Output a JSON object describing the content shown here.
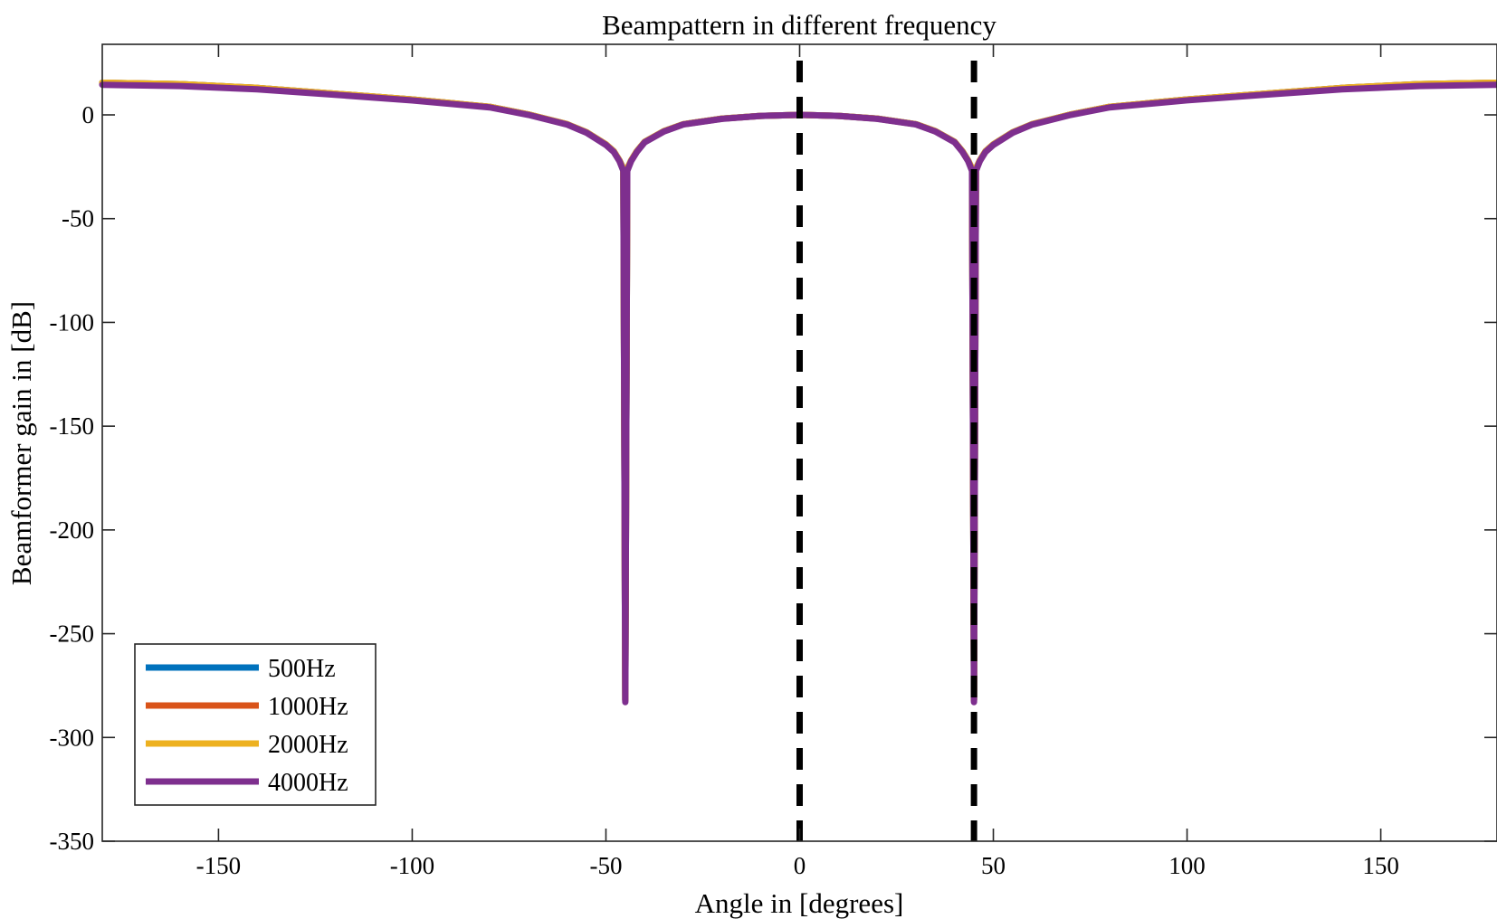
{
  "chart_data": {
    "type": "line",
    "title": "Beampattern in different frequency",
    "xlabel": "Angle in [degrees]",
    "ylabel": "Beamformer gain in [dB]",
    "xlim": [
      -180,
      180
    ],
    "ylim": [
      -350,
      34
    ],
    "xticks": [
      -150,
      -100,
      -50,
      0,
      50,
      100,
      150
    ],
    "yticks": [
      0,
      -50,
      -100,
      -150,
      -200,
      -250,
      -300,
      -350
    ],
    "grid": false,
    "legend_position": "bottom-left",
    "series": [
      {
        "name": "500Hz",
        "color": "#0072BD",
        "points": [
          [
            -180,
            15.5
          ],
          [
            -160,
            14.8
          ],
          [
            -140,
            13.0
          ],
          [
            -120,
            10.2
          ],
          [
            -100,
            7.4
          ],
          [
            -80,
            3.9
          ],
          [
            -70,
            0.2
          ],
          [
            -60,
            -4.5
          ],
          [
            -55,
            -8.4
          ],
          [
            -50,
            -14.2
          ],
          [
            -48,
            -17.5
          ],
          [
            -46.5,
            -22.0
          ],
          [
            -45.5,
            -26.0
          ],
          [
            -45,
            -282
          ],
          [
            -44.5,
            -26.0
          ],
          [
            -43.5,
            -22.0
          ],
          [
            -42,
            -17.5
          ],
          [
            -40,
            -13.0
          ],
          [
            -35,
            -7.8
          ],
          [
            -30,
            -4.5
          ],
          [
            -20,
            -1.8
          ],
          [
            -10,
            -0.5
          ],
          [
            0,
            0.0
          ],
          [
            10,
            -0.5
          ],
          [
            20,
            -1.8
          ],
          [
            30,
            -4.5
          ],
          [
            35,
            -7.8
          ],
          [
            40,
            -13.0
          ],
          [
            42,
            -17.5
          ],
          [
            43.5,
            -22.0
          ],
          [
            44.5,
            -26.0
          ],
          [
            45,
            -282
          ],
          [
            45.5,
            -26.0
          ],
          [
            46.5,
            -22.0
          ],
          [
            48,
            -17.5
          ],
          [
            50,
            -14.2
          ],
          [
            55,
            -8.4
          ],
          [
            60,
            -4.5
          ],
          [
            70,
            0.2
          ],
          [
            80,
            3.9
          ],
          [
            100,
            7.4
          ],
          [
            120,
            10.2
          ],
          [
            140,
            13.0
          ],
          [
            160,
            14.8
          ],
          [
            180,
            15.5
          ]
        ]
      },
      {
        "name": "1000Hz",
        "color": "#D95319",
        "points": [
          [
            -180,
            15.5
          ],
          [
            -160,
            14.8
          ],
          [
            -140,
            13.0
          ],
          [
            -120,
            10.2
          ],
          [
            -100,
            7.4
          ],
          [
            -80,
            3.9
          ],
          [
            -70,
            0.2
          ],
          [
            -60,
            -4.5
          ],
          [
            -55,
            -8.4
          ],
          [
            -50,
            -14.2
          ],
          [
            -48,
            -17.5
          ],
          [
            -46.5,
            -22.0
          ],
          [
            -45.5,
            -26.0
          ],
          [
            -45,
            -282
          ],
          [
            -44.5,
            -26.0
          ],
          [
            -43.5,
            -22.0
          ],
          [
            -42,
            -17.5
          ],
          [
            -40,
            -13.0
          ],
          [
            -35,
            -7.8
          ],
          [
            -30,
            -4.5
          ],
          [
            -20,
            -1.8
          ],
          [
            -10,
            -0.5
          ],
          [
            0,
            0.0
          ],
          [
            10,
            -0.5
          ],
          [
            20,
            -1.8
          ],
          [
            30,
            -4.5
          ],
          [
            35,
            -7.8
          ],
          [
            40,
            -13.0
          ],
          [
            42,
            -17.5
          ],
          [
            43.5,
            -22.0
          ],
          [
            44.5,
            -26.0
          ],
          [
            45,
            -282
          ],
          [
            45.5,
            -26.0
          ],
          [
            46.5,
            -22.0
          ],
          [
            48,
            -17.5
          ],
          [
            50,
            -14.2
          ],
          [
            55,
            -8.4
          ],
          [
            60,
            -4.5
          ],
          [
            70,
            0.2
          ],
          [
            80,
            3.9
          ],
          [
            100,
            7.4
          ],
          [
            120,
            10.2
          ],
          [
            140,
            13.0
          ],
          [
            160,
            14.8
          ],
          [
            180,
            15.5
          ]
        ]
      },
      {
        "name": "2000Hz",
        "color": "#EDB120",
        "points": [
          [
            -180,
            15.5
          ],
          [
            -160,
            14.8
          ],
          [
            -140,
            13.0
          ],
          [
            -120,
            10.2
          ],
          [
            -100,
            7.4
          ],
          [
            -80,
            3.9
          ],
          [
            -70,
            0.2
          ],
          [
            -60,
            -4.5
          ],
          [
            -55,
            -8.4
          ],
          [
            -50,
            -14.2
          ],
          [
            -48,
            -17.5
          ],
          [
            -46.5,
            -22.0
          ],
          [
            -45.5,
            -26.0
          ],
          [
            -45,
            -282
          ],
          [
            -44.5,
            -26.0
          ],
          [
            -43.5,
            -22.0
          ],
          [
            -42,
            -17.5
          ],
          [
            -40,
            -13.0
          ],
          [
            -35,
            -7.8
          ],
          [
            -30,
            -4.5
          ],
          [
            -20,
            -1.8
          ],
          [
            -10,
            -0.5
          ],
          [
            0,
            0.0
          ],
          [
            10,
            -0.5
          ],
          [
            20,
            -1.8
          ],
          [
            30,
            -4.5
          ],
          [
            35,
            -7.8
          ],
          [
            40,
            -13.0
          ],
          [
            42,
            -17.5
          ],
          [
            43.5,
            -22.0
          ],
          [
            44.5,
            -26.0
          ],
          [
            45,
            -282
          ],
          [
            45.5,
            -26.0
          ],
          [
            46.5,
            -22.0
          ],
          [
            48,
            -17.5
          ],
          [
            50,
            -14.2
          ],
          [
            55,
            -8.4
          ],
          [
            60,
            -4.5
          ],
          [
            70,
            0.2
          ],
          [
            80,
            3.9
          ],
          [
            100,
            7.4
          ],
          [
            120,
            10.2
          ],
          [
            140,
            13.0
          ],
          [
            160,
            14.8
          ],
          [
            180,
            15.5
          ]
        ]
      },
      {
        "name": "4000Hz",
        "color": "#7E2F8E",
        "points": [
          [
            -180,
            14.5
          ],
          [
            -160,
            13.9
          ],
          [
            -140,
            12.3
          ],
          [
            -120,
            9.7
          ],
          [
            -100,
            7.0
          ],
          [
            -80,
            3.6
          ],
          [
            -70,
            0.0
          ],
          [
            -60,
            -4.7
          ],
          [
            -55,
            -8.6
          ],
          [
            -50,
            -14.5
          ],
          [
            -48,
            -17.8
          ],
          [
            -46.5,
            -22.3
          ],
          [
            -45.5,
            -27.0
          ],
          [
            -45,
            -283
          ],
          [
            -44.5,
            -27.0
          ],
          [
            -43.5,
            -22.3
          ],
          [
            -42,
            -17.8
          ],
          [
            -40,
            -13.2
          ],
          [
            -35,
            -8.0
          ],
          [
            -30,
            -4.6
          ],
          [
            -20,
            -1.9
          ],
          [
            -10,
            -0.5
          ],
          [
            0,
            0.0
          ],
          [
            10,
            -0.5
          ],
          [
            20,
            -1.9
          ],
          [
            30,
            -4.6
          ],
          [
            35,
            -8.0
          ],
          [
            40,
            -13.2
          ],
          [
            42,
            -17.8
          ],
          [
            43.5,
            -22.3
          ],
          [
            44.5,
            -27.0
          ],
          [
            45,
            -283
          ],
          [
            45.5,
            -27.0
          ],
          [
            46.5,
            -22.3
          ],
          [
            48,
            -17.8
          ],
          [
            50,
            -14.5
          ],
          [
            55,
            -8.6
          ],
          [
            60,
            -4.7
          ],
          [
            70,
            0.0
          ],
          [
            80,
            3.6
          ],
          [
            100,
            7.0
          ],
          [
            120,
            9.7
          ],
          [
            140,
            12.3
          ],
          [
            160,
            13.9
          ],
          [
            180,
            14.5
          ]
        ]
      }
    ],
    "reference_lines": [
      {
        "x": 0,
        "style": "dashed",
        "color": "#000000"
      },
      {
        "x": 45,
        "style": "dashed",
        "color": "#000000"
      }
    ]
  }
}
